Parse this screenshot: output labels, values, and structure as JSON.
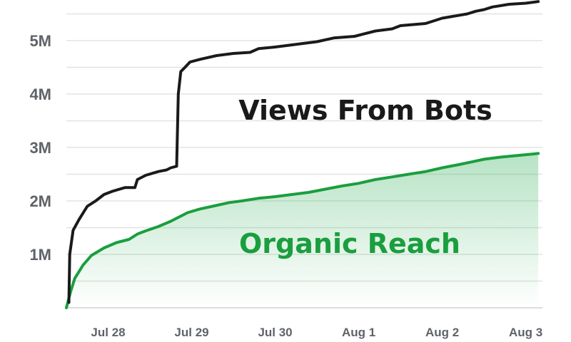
{
  "chart_data": {
    "type": "line",
    "x_unit": "days",
    "x_ticks": [
      {
        "value": 0.5,
        "label": "Jul 28"
      },
      {
        "value": 1.5,
        "label": "Jul 29"
      },
      {
        "value": 2.5,
        "label": "Jul 30"
      },
      {
        "value": 3.5,
        "label": "Aug 1"
      },
      {
        "value": 4.5,
        "label": "Aug 2"
      },
      {
        "value": 5.5,
        "label": "Aug 3"
      }
    ],
    "y_ticks": [
      {
        "value": 1000000,
        "label": "1M"
      },
      {
        "value": 2000000,
        "label": "2M"
      },
      {
        "value": 3000000,
        "label": "3M"
      },
      {
        "value": 4000000,
        "label": "4M"
      },
      {
        "value": 5000000,
        "label": "5M"
      }
    ],
    "xlim": [
      0,
      5.7
    ],
    "ylim": [
      0,
      5.8
    ],
    "y_scale_note": "values in millions",
    "grid": true,
    "series": [
      {
        "name": "Views From Bots",
        "color": "#1a1a1a",
        "area": false,
        "points": [
          [
            0.03,
            0.1
          ],
          [
            0.04,
            1.0
          ],
          [
            0.08,
            1.45
          ],
          [
            0.15,
            1.65
          ],
          [
            0.25,
            1.9
          ],
          [
            0.35,
            2.0
          ],
          [
            0.45,
            2.12
          ],
          [
            0.55,
            2.18
          ],
          [
            0.7,
            2.25
          ],
          [
            0.82,
            2.25
          ],
          [
            0.85,
            2.4
          ],
          [
            0.95,
            2.48
          ],
          [
            1.1,
            2.55
          ],
          [
            1.2,
            2.58
          ],
          [
            1.25,
            2.62
          ],
          [
            1.32,
            2.65
          ],
          [
            1.34,
            4.0
          ],
          [
            1.37,
            4.42
          ],
          [
            1.42,
            4.5
          ],
          [
            1.48,
            4.6
          ],
          [
            1.6,
            4.65
          ],
          [
            1.8,
            4.72
          ],
          [
            2.0,
            4.76
          ],
          [
            2.2,
            4.78
          ],
          [
            2.3,
            4.85
          ],
          [
            2.5,
            4.88
          ],
          [
            2.7,
            4.92
          ],
          [
            3.0,
            4.98
          ],
          [
            3.2,
            5.05
          ],
          [
            3.45,
            5.08
          ],
          [
            3.7,
            5.18
          ],
          [
            3.9,
            5.22
          ],
          [
            4.0,
            5.28
          ],
          [
            4.3,
            5.32
          ],
          [
            4.5,
            5.42
          ],
          [
            4.8,
            5.5
          ],
          [
            4.9,
            5.55
          ],
          [
            5.0,
            5.58
          ],
          [
            5.1,
            5.63
          ],
          [
            5.3,
            5.68
          ],
          [
            5.5,
            5.7
          ],
          [
            5.65,
            5.73
          ]
        ]
      },
      {
        "name": "Organic Reach",
        "color": "#1a9e3e",
        "area": true,
        "points": [
          [
            0.0,
            0.0
          ],
          [
            0.05,
            0.3
          ],
          [
            0.1,
            0.55
          ],
          [
            0.2,
            0.8
          ],
          [
            0.3,
            0.98
          ],
          [
            0.45,
            1.12
          ],
          [
            0.6,
            1.22
          ],
          [
            0.75,
            1.28
          ],
          [
            0.85,
            1.38
          ],
          [
            0.95,
            1.44
          ],
          [
            1.1,
            1.52
          ],
          [
            1.25,
            1.62
          ],
          [
            1.35,
            1.7
          ],
          [
            1.45,
            1.78
          ],
          [
            1.6,
            1.85
          ],
          [
            1.75,
            1.9
          ],
          [
            1.95,
            1.97
          ],
          [
            2.1,
            2.0
          ],
          [
            2.3,
            2.05
          ],
          [
            2.5,
            2.08
          ],
          [
            2.7,
            2.12
          ],
          [
            2.9,
            2.16
          ],
          [
            3.1,
            2.22
          ],
          [
            3.3,
            2.28
          ],
          [
            3.5,
            2.33
          ],
          [
            3.7,
            2.4
          ],
          [
            3.9,
            2.45
          ],
          [
            4.1,
            2.5
          ],
          [
            4.3,
            2.55
          ],
          [
            4.5,
            2.62
          ],
          [
            4.7,
            2.68
          ],
          [
            4.85,
            2.73
          ],
          [
            5.0,
            2.78
          ],
          [
            5.2,
            2.82
          ],
          [
            5.4,
            2.85
          ],
          [
            5.6,
            2.88
          ],
          [
            5.65,
            2.89
          ]
        ]
      }
    ],
    "annotations": [
      {
        "text": "Views From Bots",
        "series": "Views From Bots"
      },
      {
        "text": "Organic Reach",
        "series": "Organic Reach"
      }
    ]
  }
}
